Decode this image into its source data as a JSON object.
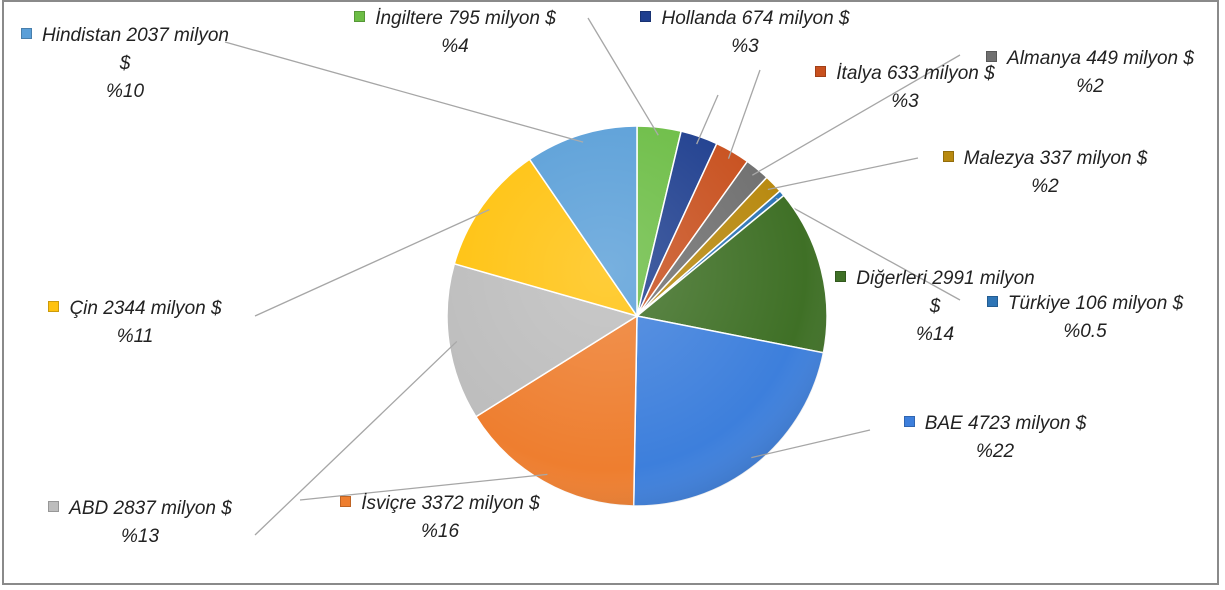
{
  "chart_data": {
    "type": "pie",
    "categories": [
      "İngiltere",
      "Hollanda",
      "İtalya",
      "Almanya",
      "Malezya",
      "Türkiye",
      "Diğerleri",
      "BAE",
      "İsviçre",
      "ABD",
      "Çin",
      "Hindistan"
    ],
    "values": [
      795,
      674,
      633,
      449,
      337,
      106,
      2991,
      4723,
      3372,
      2837,
      2344,
      2037
    ],
    "value_labels": [
      "795 milyon $",
      "674 milyon $",
      "633 milyon $",
      "449 milyon $",
      "337 milyon $",
      "106 milyon $",
      "2991 milyon $",
      "4723 milyon $",
      "3372 milyon $",
      "2837 milyon $",
      "2344 milyon $",
      "2037 milyon $"
    ],
    "percents": [
      4,
      3,
      3,
      2,
      2,
      0.5,
      14,
      22,
      16,
      13,
      11,
      10
    ],
    "percent_labels": [
      "%4",
      "%3",
      "%3",
      "%2",
      "%2",
      "%0.5",
      "%14",
      "%22",
      "%16",
      "%13",
      "%11",
      "%10"
    ],
    "colors": [
      "#6cbd45",
      "#1f3f8f",
      "#c8501e",
      "#707070",
      "#b8890f",
      "#2e75b6",
      "#3f7026",
      "#3d7fdc",
      "#ee7e2f",
      "#bdbdbd",
      "#ffc20e",
      "#5a9fd8"
    ]
  }
}
